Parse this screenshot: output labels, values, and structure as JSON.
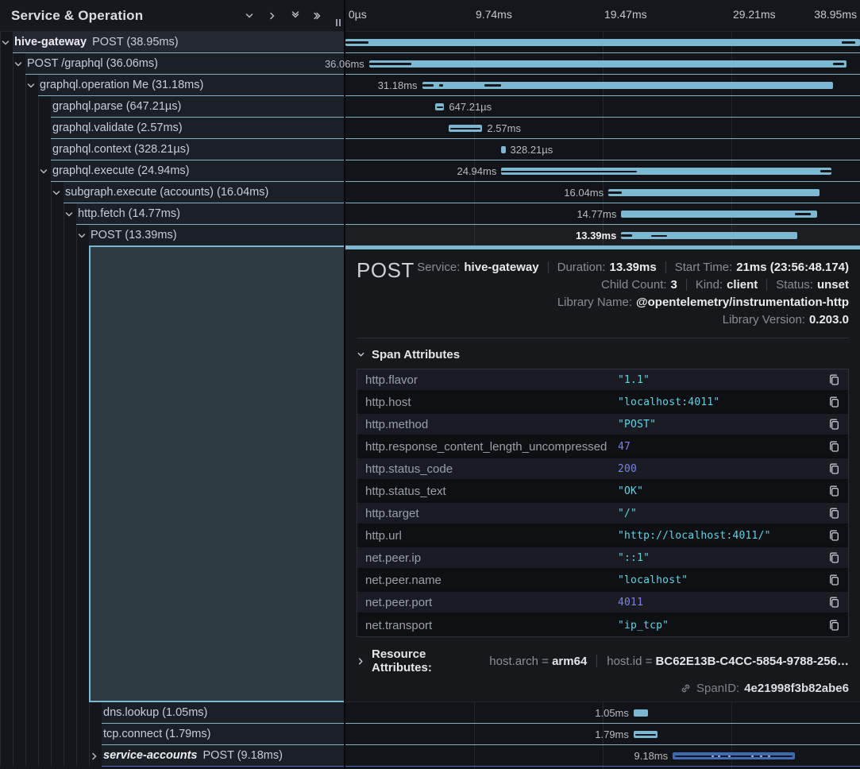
{
  "header": {
    "title": "Service & Operation",
    "icons": [
      "chevron-down",
      "chevron-right",
      "double-chevron-down",
      "double-chevron-right"
    ]
  },
  "colors": {
    "hive": "#7cb8d2",
    "accounts": "#4169b2",
    "string": "#5fd4e6",
    "number": "#7d81f0"
  },
  "ruler": {
    "ticks": [
      "0µs",
      "9.74ms",
      "19.47ms",
      "29.21ms",
      "38.95ms"
    ]
  },
  "rows": [
    {
      "service": "hive-gateway",
      "label": "POST (38.95ms)",
      "depth": 0,
      "chevron": "down",
      "root": true,
      "bar": {
        "left": 0,
        "width": 100,
        "color": "hive",
        "ticks": [
          {
            "l": 0,
            "w": 4.4
          },
          {
            "l": 96.4,
            "w": 2.6
          }
        ]
      }
    },
    {
      "label": "POST /graphql (36.06ms)",
      "depth": 1,
      "chevron": "down",
      "durLabel": "36.06ms",
      "labelSide": "left",
      "bar": {
        "left": 4.6,
        "width": 92.8,
        "color": "hive",
        "ticks": [
          {
            "l": 0,
            "w": 8.8
          },
          {
            "l": 97.2,
            "w": 2.2
          }
        ]
      }
    },
    {
      "label": "graphql.operation Me (31.18ms)",
      "depth": 2,
      "chevron": "down",
      "durLabel": "31.18ms",
      "labelSide": "left",
      "bar": {
        "left": 14.9,
        "width": 79.8,
        "color": "hive",
        "ticks": [
          {
            "l": 0,
            "w": 2.8
          },
          {
            "l": 4.2,
            "w": 1
          },
          {
            "l": 15.2,
            "w": 4
          }
        ]
      }
    },
    {
      "label": "graphql.parse (647.21µs)",
      "depth": 3,
      "durLabel": "647.21µs",
      "labelSide": "right",
      "bar": {
        "left": 17.5,
        "width": 1.7,
        "color": "hive",
        "ticks": [
          {
            "l": 12,
            "w": 76,
            "thin": true
          }
        ]
      }
    },
    {
      "label": "graphql.validate (2.57ms)",
      "depth": 3,
      "durLabel": "2.57ms",
      "labelSide": "right",
      "bar": {
        "left": 20.0,
        "width": 6.6,
        "color": "hive",
        "ticks": [
          {
            "l": 5,
            "w": 90,
            "thin": true
          }
        ]
      }
    },
    {
      "label": "graphql.context (328.21µs)",
      "depth": 3,
      "durLabel": "328.21µs",
      "labelSide": "right",
      "bar": {
        "left": 30.3,
        "width": 0.8,
        "color": "hive",
        "ticks": []
      }
    },
    {
      "label": "graphql.execute (24.94ms)",
      "depth": 3,
      "chevron": "down",
      "durLabel": "24.94ms",
      "labelSide": "left",
      "bar": {
        "left": 30.3,
        "width": 64.2,
        "color": "hive",
        "ticks": [
          {
            "l": 0,
            "w": 41,
            "thin": true
          },
          {
            "l": 96.6,
            "w": 3.4
          }
        ]
      }
    },
    {
      "label": "subgraph.execute (accounts) (16.04ms)",
      "depth": 4,
      "chevron": "down",
      "durLabel": "16.04ms",
      "labelSide": "left",
      "bar": {
        "left": 51.1,
        "width": 41.0,
        "color": "hive",
        "ticks": [
          {
            "l": 0,
            "w": 6.5
          }
        ]
      }
    },
    {
      "label": "http.fetch (14.77ms)",
      "depth": 5,
      "chevron": "down",
      "durLabel": "14.77ms",
      "labelSide": "left",
      "bar": {
        "left": 53.6,
        "width": 38.0,
        "color": "hive",
        "ticks": [
          {
            "l": 89,
            "w": 8
          }
        ]
      }
    },
    {
      "label": "POST (13.39ms)",
      "depth": 6,
      "chevron": "down",
      "selected": true,
      "durLabel": "13.39ms",
      "labelSide": "left",
      "bar": {
        "left": 53.6,
        "width": 34.2,
        "color": "hive",
        "ticks": [
          {
            "l": 0,
            "w": 6
          },
          {
            "l": 17,
            "w": 9,
            "thin": true
          }
        ]
      }
    }
  ],
  "bottom_rows": [
    {
      "label": "dns.lookup (1.05ms)",
      "depth": 7,
      "durLabel": "1.05ms",
      "labelSide": "left",
      "bar": {
        "left": 56.0,
        "width": 2.8,
        "color": "hive",
        "ticks": []
      }
    },
    {
      "label": "tcp.connect (1.79ms)",
      "depth": 7,
      "durLabel": "1.79ms",
      "labelSide": "left",
      "bar": {
        "left": 56.0,
        "width": 4.7,
        "color": "hive",
        "ticks": [
          {
            "l": 6,
            "w": 86,
            "thin": true
          }
        ]
      }
    },
    {
      "service": "service-accounts",
      "serviceStyle": "italic",
      "label": "POST (9.18ms)",
      "depth": 7,
      "chevron": "right",
      "durLabel": "9.18ms",
      "labelSide": "left",
      "bar": {
        "left": 63.6,
        "width": 23.8,
        "color": "accounts",
        "ticks": [
          {
            "l": 2,
            "w": 96,
            "thin": true
          }
        ],
        "dots": [
          32,
          37,
          45,
          64,
          71,
          78
        ]
      }
    }
  ],
  "detail": {
    "title": "POST",
    "meta_lines": [
      [
        {
          "label": "Service:",
          "value": "hive-gateway"
        },
        {
          "label": "Duration:",
          "value": "13.39ms"
        },
        {
          "label": "Start Time:",
          "value": "21ms (23:56:48.174)"
        }
      ],
      [
        {
          "label": "Child Count:",
          "value": "3"
        },
        {
          "label": "Kind:",
          "value": "client"
        },
        {
          "label": "Status:",
          "value": "unset"
        }
      ],
      [
        {
          "label": "Library Name:",
          "value": "@opentelemetry/instrumentation-http"
        }
      ],
      [
        {
          "label": "Library Version:",
          "value": "0.203.0"
        }
      ]
    ],
    "span_attributes_title": "Span Attributes",
    "attributes": [
      {
        "key": "http.flavor",
        "value": "\"1.1\"",
        "type": "string"
      },
      {
        "key": "http.host",
        "value": "\"localhost:4011\"",
        "type": "string"
      },
      {
        "key": "http.method",
        "value": "\"POST\"",
        "type": "string"
      },
      {
        "key": "http.response_content_length_uncompressed",
        "value": "47",
        "type": "number"
      },
      {
        "key": "http.status_code",
        "value": "200",
        "type": "number"
      },
      {
        "key": "http.status_text",
        "value": "\"OK\"",
        "type": "string"
      },
      {
        "key": "http.target",
        "value": "\"/\"",
        "type": "string"
      },
      {
        "key": "http.url",
        "value": "\"http://localhost:4011/\"",
        "type": "string"
      },
      {
        "key": "net.peer.ip",
        "value": "\"::1\"",
        "type": "string"
      },
      {
        "key": "net.peer.name",
        "value": "\"localhost\"",
        "type": "string"
      },
      {
        "key": "net.peer.port",
        "value": "4011",
        "type": "number"
      },
      {
        "key": "net.transport",
        "value": "\"ip_tcp\"",
        "type": "string"
      }
    ],
    "resource": {
      "title": "Resource Attributes:",
      "items": [
        {
          "key": "host.arch",
          "value": "arm64"
        },
        {
          "key": "host.id",
          "value": "BC62E13B-C4CC-5854-9788-256…"
        }
      ]
    },
    "span_id": {
      "label": "SpanID:",
      "value": "4e21998f3b82abe6"
    }
  }
}
